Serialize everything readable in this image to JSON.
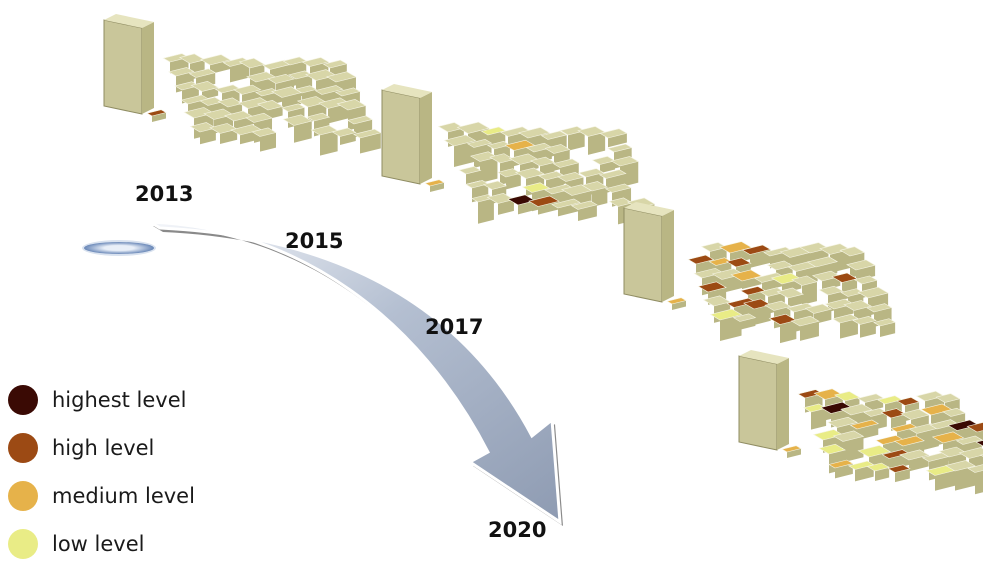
{
  "years": {
    "y2013": "2013",
    "y2015": "2015",
    "y2017": "2017",
    "y2020": "2020"
  },
  "legend": [
    {
      "label": "highest level",
      "color": "#3a0a04"
    },
    {
      "label": "high level",
      "color": "#9c4a14"
    },
    {
      "label": "medium level",
      "color": "#e6b24a"
    },
    {
      "label": "low level",
      "color": "#e9ec86"
    }
  ],
  "colors": {
    "building": "#d8d6a8",
    "building_side": "#b9b684",
    "tower": "#c9c69a",
    "arrow_fill": "#a9b4c6",
    "arrow_edge": "#1c1c1c"
  }
}
